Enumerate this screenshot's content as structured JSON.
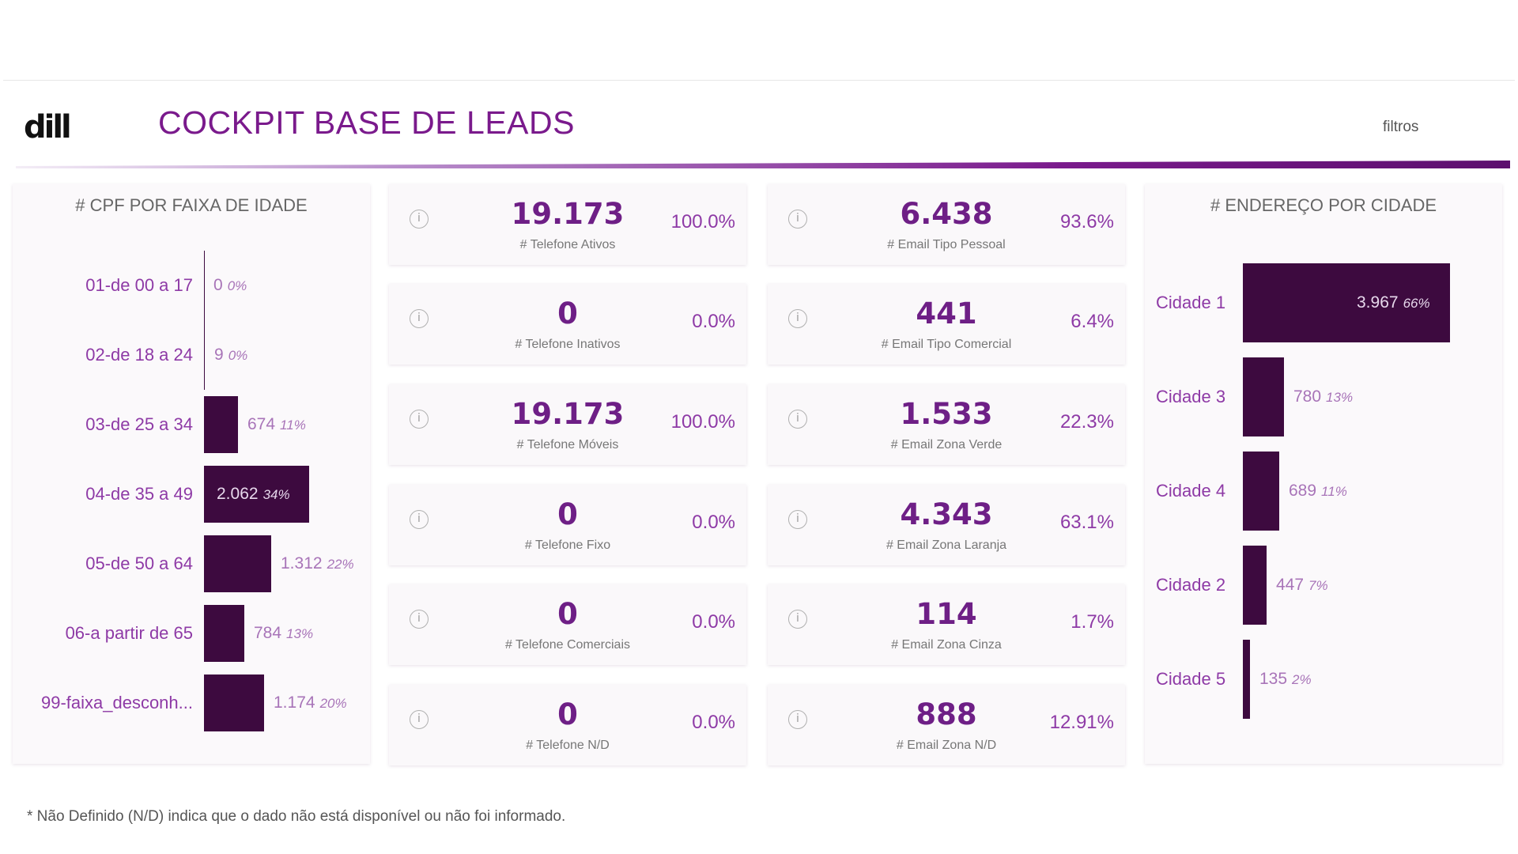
{
  "header": {
    "logo_text": "dill",
    "title": "COCKPIT BASE DE LEADS",
    "filters_label": "filtros"
  },
  "colors": {
    "accent": "#7a1a8c",
    "bar": "#3d0a3f",
    "value_text": "#a874b8"
  },
  "age_panel": {
    "title": "# CPF POR FAIXA DE IDADE",
    "chart_data": {
      "type": "bar",
      "orientation": "horizontal",
      "title": "# CPF POR FAIXA DE IDADE",
      "categories": [
        "01-de 00 a 17",
        "02-de 18 a 24",
        "03-de 25 a 34",
        "04-de 35 a 49",
        "05-de 50 a 64",
        "06-a partir de 65",
        "99-faixa_desconh..."
      ],
      "values": [
        0,
        9,
        674,
        2062,
        1312,
        784,
        1174
      ],
      "value_labels": [
        "0",
        "9",
        "674",
        "2.062",
        "1.312",
        "784",
        "1.174"
      ],
      "percent_labels": [
        "0%",
        "0%",
        "11%",
        "34%",
        "22%",
        "13%",
        "20%"
      ]
    }
  },
  "city_panel": {
    "title": "# ENDEREÇO POR CIDADE",
    "chart_data": {
      "type": "bar",
      "orientation": "horizontal",
      "title": "# ENDEREÇO POR CIDADE",
      "categories": [
        "Cidade 1",
        "Cidade 3",
        "Cidade 4",
        "Cidade 2",
        "Cidade 5"
      ],
      "values": [
        3967,
        780,
        689,
        447,
        135
      ],
      "value_labels": [
        "3.967",
        "780",
        "689",
        "447",
        "135"
      ],
      "percent_labels": [
        "66%",
        "13%",
        "11%",
        "7%",
        "2%"
      ]
    }
  },
  "phone_cards": [
    {
      "value": "19.173",
      "label": "# Telefone Ativos",
      "pct": "100.0%"
    },
    {
      "value": "0",
      "label": "# Telefone Inativos",
      "pct": "0.0%"
    },
    {
      "value": "19.173",
      "label": "# Telefone Móveis",
      "pct": "100.0%"
    },
    {
      "value": "0",
      "label": "# Telefone Fixo",
      "pct": "0.0%"
    },
    {
      "value": "0",
      "label": "# Telefone Comerciais",
      "pct": "0.0%"
    },
    {
      "value": "0",
      "label": "# Telefone N/D",
      "pct": "0.0%"
    }
  ],
  "email_cards": [
    {
      "value": "6.438",
      "label": "# Email Tipo Pessoal",
      "pct": "93.6%"
    },
    {
      "value": "441",
      "label": "# Email Tipo Comercial",
      "pct": "6.4%"
    },
    {
      "value": "1.533",
      "label": "# Email Zona Verde",
      "pct": "22.3%"
    },
    {
      "value": "4.343",
      "label": "# Email Zona Laranja",
      "pct": "63.1%"
    },
    {
      "value": "114",
      "label": "# Email Zona Cinza",
      "pct": "1.7%"
    },
    {
      "value": "888",
      "label": "# Email Zona N/D",
      "pct": "12.91%"
    }
  ],
  "info_icon_glyph": "i",
  "footnote": "* Não Definido (N/D) indica que o dado não está disponível ou não foi informado."
}
